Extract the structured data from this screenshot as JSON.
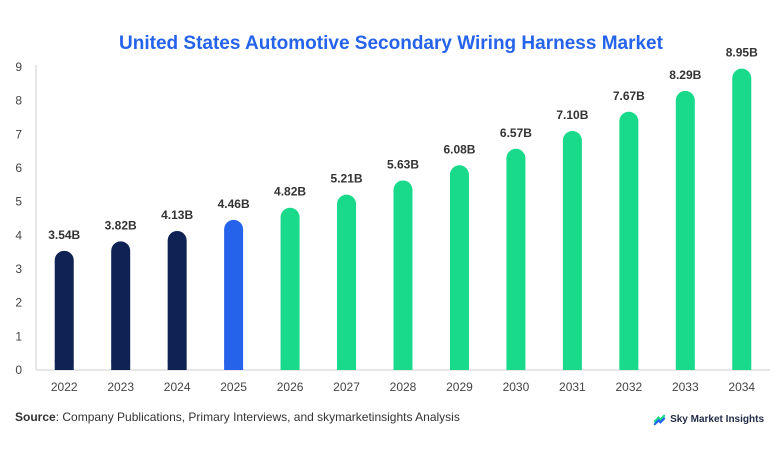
{
  "colors": {
    "historical": "#0f2254",
    "current": "#2563eb",
    "forecast": "#19d98b",
    "title": "#2563eb"
  },
  "footer": {
    "source_label": "Source",
    "source_text": ": Company Publications, Primary Interviews, and skymarketinsights Analysis",
    "brand": "Sky Market Insights",
    "brand_icon": "sky-market-insights-logo-icon"
  },
  "chart_data": {
    "type": "bar",
    "title": "United States Automotive Secondary Wiring Harness Market",
    "xlabel": "",
    "ylabel": "",
    "categories": [
      "2022",
      "2023",
      "2024",
      "2025",
      "2026",
      "2027",
      "2028",
      "2029",
      "2030",
      "2031",
      "2032",
      "2033",
      "2034"
    ],
    "values": [
      3.54,
      3.82,
      4.13,
      4.46,
      4.82,
      5.21,
      5.63,
      6.08,
      6.57,
      7.1,
      7.67,
      8.29,
      8.95
    ],
    "value_labels": [
      "3.54B",
      "3.82B",
      "4.13B",
      "4.46B",
      "4.82B",
      "5.21B",
      "5.63B",
      "6.08B",
      "6.57B",
      "7.10B",
      "7.67B",
      "8.29B",
      "8.95B"
    ],
    "bar_groups": [
      "historical",
      "historical",
      "historical",
      "current",
      "forecast",
      "forecast",
      "forecast",
      "forecast",
      "forecast",
      "forecast",
      "forecast",
      "forecast",
      "forecast"
    ],
    "ylim": [
      0,
      9
    ],
    "yticks": [
      0,
      1,
      2,
      3,
      4,
      5,
      6,
      7,
      8,
      9
    ],
    "grid": false,
    "legend": "none"
  }
}
